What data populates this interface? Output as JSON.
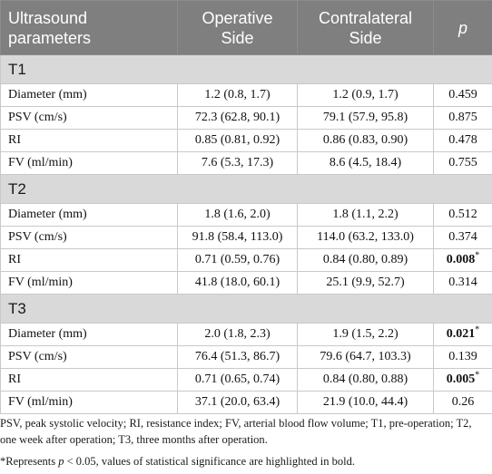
{
  "header": {
    "col1_line1": "Ultrasound",
    "col1_line2": "parameters",
    "col2_line1": "Operative",
    "col2_line2": "Side",
    "col3_line1": "Contralateral",
    "col3_line2": "Side",
    "col4": "p"
  },
  "sections": [
    {
      "label": "T1",
      "rows": [
        {
          "param": "Diameter (mm)",
          "operative": "1.2 (0.8, 1.7)",
          "contralateral": "1.2 (0.9, 1.7)",
          "p": "0.459",
          "star": ""
        },
        {
          "param": "PSV (cm/s)",
          "operative": "72.3 (62.8, 90.1)",
          "contralateral": "79.1 (57.9, 95.8)",
          "p": "0.875",
          "star": ""
        },
        {
          "param": "RI",
          "operative": "0.85 (0.81, 0.92)",
          "contralateral": "0.86 (0.83, 0.90)",
          "p": "0.478",
          "star": ""
        },
        {
          "param": "FV (ml/min)",
          "operative": "7.6 (5.3, 17.3)",
          "contralateral": "8.6 (4.5, 18.4)",
          "p": "0.755",
          "star": ""
        }
      ]
    },
    {
      "label": "T2",
      "rows": [
        {
          "param": "Diameter (mm)",
          "operative": "1.8 (1.6, 2.0)",
          "contralateral": "1.8 (1.1, 2.2)",
          "p": "0.512",
          "star": ""
        },
        {
          "param": "PSV (cm/s)",
          "operative": "91.8 (58.4, 113.0)",
          "contralateral": "114.0 (63.2, 133.0)",
          "p": "0.374",
          "star": ""
        },
        {
          "param": "RI",
          "operative": "0.71 (0.59, 0.76)",
          "contralateral": "0.84 (0.80, 0.89)",
          "p": "0.008",
          "star": "*"
        },
        {
          "param": "FV (ml/min)",
          "operative": "41.8 (18.0, 60.1)",
          "contralateral": "25.1 (9.9, 52.7)",
          "p": "0.314",
          "star": ""
        }
      ]
    },
    {
      "label": "T3",
      "rows": [
        {
          "param": "Diameter (mm)",
          "operative": "2.0 (1.8, 2.3)",
          "contralateral": "1.9 (1.5, 2.2)",
          "p": "0.021",
          "star": "*"
        },
        {
          "param": "PSV (cm/s)",
          "operative": "76.4 (51.3, 86.7)",
          "contralateral": "79.6 (64.7, 103.3)",
          "p": "0.139",
          "star": ""
        },
        {
          "param": "RI",
          "operative": "0.71 (0.65, 0.74)",
          "contralateral": "0.84 (0.80, 0.88)",
          "p": "0.005",
          "star": "*"
        },
        {
          "param": "FV (ml/min)",
          "operative": "37.1 (20.0, 63.4)",
          "contralateral": "21.9 (10.0, 44.4)",
          "p": "0.26",
          "star": ""
        }
      ]
    }
  ],
  "footnotes": {
    "abbreviations": "PSV, peak systolic velocity; RI, resistance index; FV, arterial blood flow volume; T1, pre-operation; T2, one week after operation; T3, three months after operation.",
    "significance_prefix": "*Represents ",
    "significance_p": "p",
    "significance_suffix": " < 0.05, values of statistical significance are highlighted in bold."
  }
}
